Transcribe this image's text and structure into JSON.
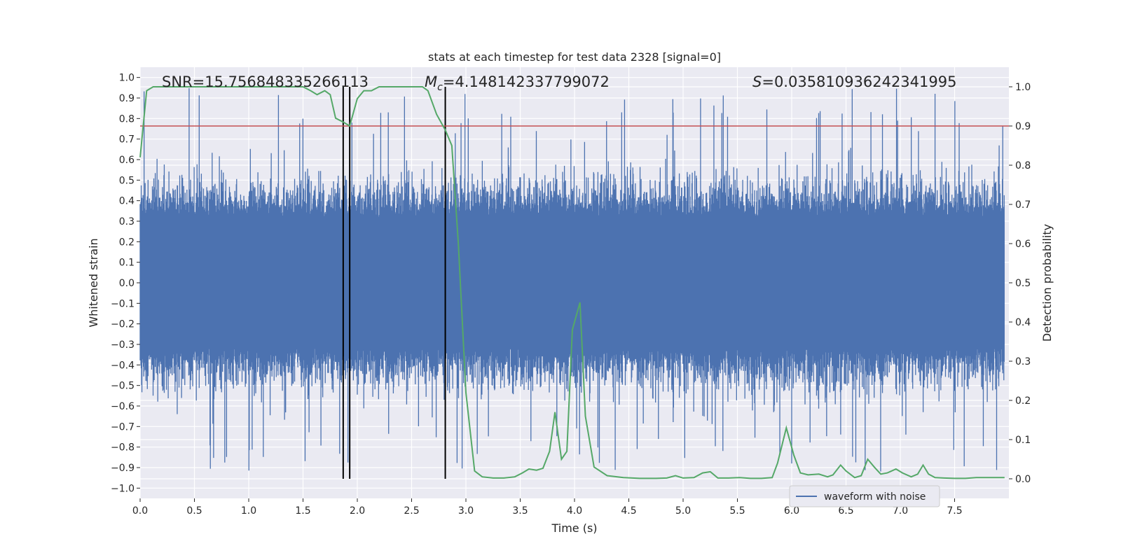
{
  "chart_data": {
    "type": "line",
    "title": "stats at each timestep for test data 2328 [signal=0]",
    "xlabel": "Time (s)",
    "ylabel_left": "Whitened strain",
    "ylabel_right": "Detection probability",
    "xlim": [
      0.0,
      8.0
    ],
    "ylim_left": [
      -1.05,
      1.05
    ],
    "ylim_right": [
      -0.05,
      1.05
    ],
    "x_ticks": [
      "0.0",
      "0.5",
      "1.0",
      "1.5",
      "2.0",
      "2.5",
      "3.0",
      "3.5",
      "4.0",
      "4.5",
      "5.0",
      "5.5",
      "6.0",
      "6.5",
      "7.0",
      "7.5"
    ],
    "x_tick_values": [
      0.0,
      0.5,
      1.0,
      1.5,
      2.0,
      2.5,
      3.0,
      3.5,
      4.0,
      4.5,
      5.0,
      5.5,
      6.0,
      6.5,
      7.0,
      7.5
    ],
    "y_ticks_left": [
      "1.0",
      "0.9",
      "0.8",
      "0.7",
      "0.6",
      "0.5",
      "0.4",
      "0.3",
      "0.2",
      "0.1",
      "0.0",
      "−0.1",
      "−0.2",
      "−0.3",
      "−0.4",
      "−0.5",
      "−0.6",
      "−0.7",
      "−0.8",
      "−0.9",
      "−1.0"
    ],
    "y_tick_values_left": [
      1.0,
      0.9,
      0.8,
      0.7,
      0.6,
      0.5,
      0.4,
      0.3,
      0.2,
      0.1,
      0.0,
      -0.1,
      -0.2,
      -0.3,
      -0.4,
      -0.5,
      -0.6,
      -0.7,
      -0.8,
      -0.9,
      -1.0
    ],
    "y_ticks_right": [
      "1.0",
      "0.9",
      "0.8",
      "0.7",
      "0.6",
      "0.5",
      "0.4",
      "0.3",
      "0.2",
      "0.1",
      "0.0"
    ],
    "y_tick_values_right": [
      1.0,
      0.9,
      0.8,
      0.7,
      0.6,
      0.5,
      0.4,
      0.3,
      0.2,
      0.1,
      0.0
    ],
    "grid": true,
    "legend": {
      "placement": "lower-right",
      "entries": [
        "waveform with noise"
      ]
    },
    "annotations": {
      "snr_text": "SNR=15.756848335266113",
      "mc_symbol": "M",
      "mc_subscript": "c",
      "mc_value": "=4.148142337799072",
      "s_symbol": "S",
      "s_value": "=0.035810936242341995"
    },
    "threshold_line": {
      "value": 0.9,
      "axis": "right",
      "color": "#c44e52"
    },
    "vertical_lines": [
      1.87,
      1.93,
      2.81
    ],
    "waveform": {
      "name": "waveform with noise",
      "color": "#4c72b0",
      "approx_range": [
        -0.95,
        1.0
      ],
      "seed": 2328
    },
    "detection_probability": {
      "color": "#55a868",
      "x": [
        0.0,
        0.06,
        0.12,
        0.2,
        0.3,
        0.4,
        0.5,
        0.6,
        0.7,
        0.8,
        0.9,
        1.0,
        1.1,
        1.2,
        1.3,
        1.4,
        1.5,
        1.57,
        1.63,
        1.7,
        1.75,
        1.8,
        1.87,
        1.93,
        2.0,
        2.06,
        2.13,
        2.2,
        2.3,
        2.4,
        2.5,
        2.6,
        2.65,
        2.73,
        2.81,
        2.87,
        2.93,
        3.0,
        3.04,
        3.08,
        3.15,
        3.25,
        3.35,
        3.45,
        3.52,
        3.58,
        3.65,
        3.71,
        3.77,
        3.82,
        3.88,
        3.93,
        3.98,
        4.05,
        4.1,
        4.18,
        4.3,
        4.45,
        4.6,
        4.75,
        4.85,
        4.93,
        5.0,
        5.1,
        5.18,
        5.25,
        5.32,
        5.42,
        5.52,
        5.62,
        5.72,
        5.82,
        5.87,
        5.95,
        6.02,
        6.08,
        6.15,
        6.25,
        6.33,
        6.38,
        6.45,
        6.5,
        6.58,
        6.64,
        6.7,
        6.76,
        6.82,
        6.88,
        6.96,
        7.02,
        7.1,
        7.16,
        7.21,
        7.26,
        7.32,
        7.4,
        7.5,
        7.6,
        7.7,
        7.8,
        7.96
      ],
      "y": [
        0.82,
        0.99,
        1.0,
        1.0,
        1.0,
        1.0,
        1.0,
        1.0,
        1.0,
        1.0,
        1.0,
        1.0,
        1.0,
        1.0,
        1.0,
        1.0,
        1.0,
        0.99,
        0.98,
        0.99,
        0.98,
        0.92,
        0.91,
        0.9,
        0.97,
        0.99,
        0.99,
        1.0,
        1.0,
        1.0,
        1.0,
        1.0,
        0.99,
        0.93,
        0.89,
        0.85,
        0.6,
        0.22,
        0.12,
        0.02,
        0.005,
        0.002,
        0.002,
        0.005,
        0.015,
        0.025,
        0.022,
        0.027,
        0.07,
        0.17,
        0.05,
        0.07,
        0.38,
        0.45,
        0.16,
        0.03,
        0.008,
        0.003,
        0.001,
        0.001,
        0.002,
        0.008,
        0.002,
        0.003,
        0.015,
        0.018,
        0.002,
        0.002,
        0.003,
        0.001,
        0.001,
        0.003,
        0.04,
        0.13,
        0.06,
        0.015,
        0.01,
        0.012,
        0.005,
        0.01,
        0.035,
        0.02,
        0.003,
        0.008,
        0.05,
        0.03,
        0.012,
        0.015,
        0.025,
        0.015,
        0.005,
        0.012,
        0.035,
        0.012,
        0.003,
        0.002,
        0.001,
        0.001,
        0.003,
        0.003,
        0.003
      ]
    }
  }
}
